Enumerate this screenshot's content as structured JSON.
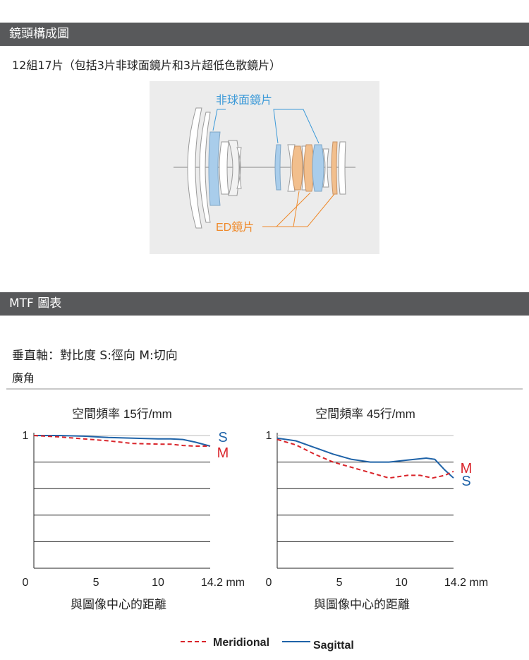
{
  "section1": {
    "title": "鏡頭構成圖",
    "description": "12組17片（包括3片非球面鏡片和3片超低色散鏡片）"
  },
  "lens_diagram": {
    "aspherical_label": "非球面鏡片",
    "ed_label": "ED鏡片",
    "colors": {
      "aspherical": "#a9cdeb",
      "ed": "#f2bf8d",
      "aspherical_line": "#3d9ad8",
      "ed_line": "#ef8a2b"
    }
  },
  "section2": {
    "title": "MTF 圖表",
    "axis_note": "垂直軸：對比度 S:徑向 M:切向",
    "subtitle": "廣角"
  },
  "legend": {
    "meridional": "Meridional",
    "sagittal": "Sagittal"
  },
  "colors": {
    "meridional": "#d9242a",
    "sagittal": "#1f63a8",
    "header_bar": "#58595b"
  },
  "chart_data": [
    {
      "type": "line",
      "title": "空間頻率 15行/mm",
      "xlabel": "與圖像中心的距離",
      "xunit": "mm",
      "xlim": [
        0,
        14.2
      ],
      "ylim": [
        0,
        1
      ],
      "y_top_label": "1",
      "x_ticks": [
        "0",
        "5",
        "10",
        "14.2 mm"
      ],
      "x_tick_values": [
        0,
        5,
        10,
        14.2
      ],
      "gridlines_y": [
        0.2,
        0.4,
        0.6,
        0.8
      ],
      "end_labels": {
        "S": "S",
        "M": "M"
      },
      "series": [
        {
          "name": "Sagittal",
          "key": "S",
          "style": "solid",
          "x": [
            0,
            2,
            4,
            6,
            8,
            10,
            11,
            12,
            13,
            14.2
          ],
          "y": [
            1.0,
            1.0,
            0.995,
            0.985,
            0.98,
            0.975,
            0.975,
            0.97,
            0.95,
            0.92
          ]
        },
        {
          "name": "Meridional",
          "key": "M",
          "style": "dashed",
          "x": [
            0,
            2,
            4,
            6,
            8,
            10,
            11,
            12,
            13,
            14.2
          ],
          "y": [
            1.0,
            0.99,
            0.975,
            0.96,
            0.94,
            0.935,
            0.935,
            0.925,
            0.92,
            0.92
          ]
        }
      ]
    },
    {
      "type": "line",
      "title": "空間頻率 45行/mm",
      "xlabel": "與圖像中心的距離",
      "xunit": "mm",
      "xlim": [
        0,
        14.2
      ],
      "ylim": [
        0,
        1
      ],
      "y_top_label": "1",
      "x_ticks": [
        "0",
        "5",
        "10",
        "14.2 mm"
      ],
      "x_tick_values": [
        0,
        5,
        10,
        14.2
      ],
      "gridlines_y": [
        0.2,
        0.4,
        0.6,
        0.8
      ],
      "end_labels": {
        "S": "S",
        "M": "M"
      },
      "series": [
        {
          "name": "Sagittal",
          "key": "S",
          "style": "solid",
          "x": [
            0,
            1.5,
            3,
            4.5,
            6,
            7.5,
            9,
            10.5,
            12,
            12.7,
            13.5,
            14.2
          ],
          "y": [
            0.98,
            0.96,
            0.91,
            0.86,
            0.82,
            0.8,
            0.8,
            0.815,
            0.83,
            0.82,
            0.74,
            0.68
          ]
        },
        {
          "name": "Meridional",
          "key": "M",
          "style": "dashed",
          "x": [
            0,
            1.5,
            3,
            4.5,
            6,
            7.5,
            9,
            10.5,
            11.5,
            12.5,
            13.5,
            14.2
          ],
          "y": [
            0.97,
            0.93,
            0.86,
            0.8,
            0.76,
            0.72,
            0.68,
            0.7,
            0.7,
            0.68,
            0.7,
            0.73
          ]
        }
      ]
    }
  ]
}
